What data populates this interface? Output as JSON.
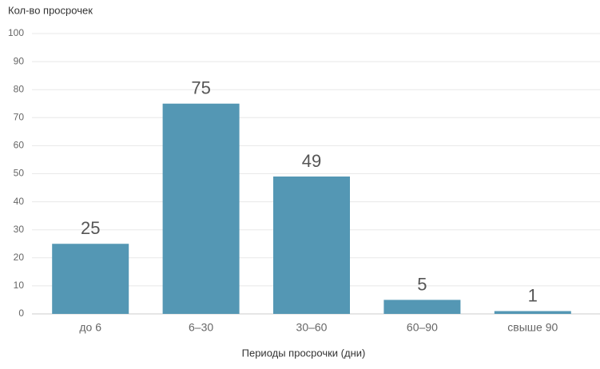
{
  "chart_data": {
    "type": "bar",
    "y_label": "Кол-во просрочек",
    "x_label": "Периоды просрочки (дни)",
    "categories": [
      "до 6",
      "6–30",
      "30–60",
      "60–90",
      "свыше 90"
    ],
    "values": [
      25,
      75,
      49,
      5,
      1
    ],
    "color": "#5497b4",
    "ylim": [
      0,
      100
    ],
    "yticks": [
      0,
      10,
      20,
      30,
      40,
      50,
      60,
      70,
      80,
      90,
      100
    ],
    "grid": true
  }
}
